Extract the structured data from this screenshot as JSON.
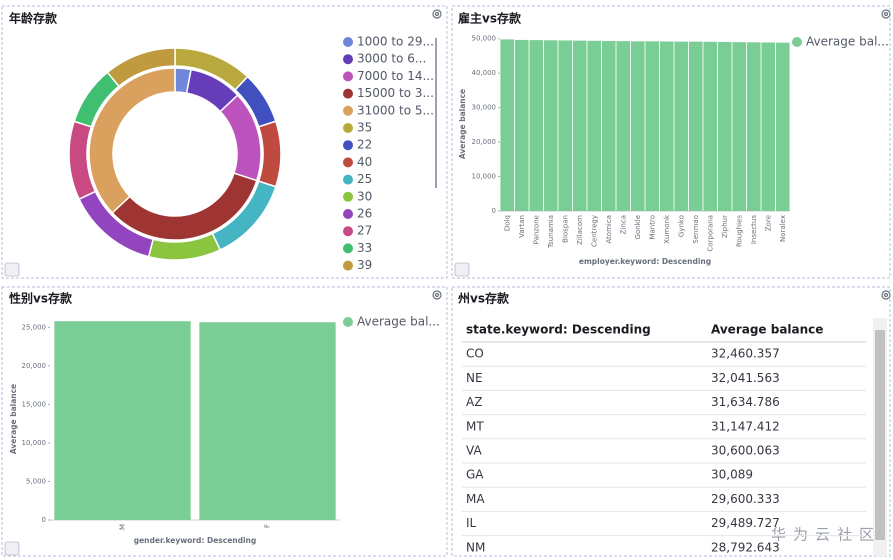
{
  "chart_data": [
    {
      "type": "donut",
      "title": "年龄存款",
      "rings": [
        {
          "categories": [
            "1000 to 29...",
            "3000 to 6...",
            "7000 to 14...",
            "15000 to 3...",
            "31000 to 5..."
          ],
          "colors": [
            "#6f87d8",
            "#663db8",
            "#bc52bc",
            "#9e3533",
            "#daa05d"
          ],
          "values": [
            3,
            10,
            17,
            33,
            37
          ]
        },
        {
          "categories": [
            "35",
            "22",
            "40",
            "25",
            "30",
            "26",
            "27",
            "33",
            "39"
          ],
          "colors": [
            "#b9a83e",
            "#4050bf",
            "#bf4a3f",
            "#45b5c4",
            "#8bc43f",
            "#9345bf",
            "#c94a82",
            "#3fbf6f",
            "#bf9a3f"
          ],
          "values": [
            12,
            8,
            10,
            13,
            11,
            14,
            12,
            9,
            11
          ]
        }
      ]
    },
    {
      "type": "bar",
      "title": "雇主vs存款",
      "categories": [
        "Dolq",
        "Vartan",
        "Panzone",
        "Tsunamia",
        "Biospan",
        "Zillacom",
        "Centregy",
        "Atomica",
        "Zinca",
        "Gonkle",
        "Mantro",
        "Xumonk",
        "Gynko",
        "Senmao",
        "Corporana",
        "Ziphur",
        "Roughies",
        "Insectus",
        "Zore",
        "Noralex"
      ],
      "series": [
        {
          "name": "Average bal...",
          "color": "#7acd94",
          "values": [
            49800,
            49650,
            49600,
            49550,
            49500,
            49450,
            49400,
            49350,
            49300,
            49250,
            49250,
            49200,
            49150,
            49150,
            49100,
            49050,
            49000,
            48950,
            48900,
            48850
          ]
        }
      ],
      "ylim": [
        0,
        50500
      ],
      "yticks": [
        0,
        {
          "value": 10000,
          "label": "10,000"
        },
        {
          "value": 20000,
          "label": "20,000"
        },
        {
          "value": 30000,
          "label": "30,000"
        },
        {
          "value": 40000,
          "label": "40,000"
        },
        {
          "value": 50000,
          "label": "50,000"
        }
      ],
      "x_label": "employer.keyword: Descending",
      "y_label": "Average balance"
    },
    {
      "type": "bar",
      "title": "性别vs存款",
      "categories": [
        "M",
        "F"
      ],
      "series": [
        {
          "name": "Average bal...",
          "color": "#7acd94",
          "values": [
            25780,
            25650
          ]
        }
      ],
      "ylim": [
        0,
        26200
      ],
      "yticks": [
        0,
        {
          "value": 5000,
          "label": "5,000"
        },
        {
          "value": 10000,
          "label": "10,000"
        },
        {
          "value": 15000,
          "label": "15,000"
        },
        {
          "value": 20000,
          "label": "20,000"
        },
        {
          "value": 25000,
          "label": "25,000"
        }
      ],
      "x_label": "gender.keyword: Descending",
      "y_label": "Average balance"
    }
  ],
  "table": {
    "title": "州vs存款",
    "columns": [
      "state.keyword: Descending",
      "Average balance"
    ],
    "rows": [
      [
        "CO",
        "32,460.357"
      ],
      [
        "NE",
        "32,041.563"
      ],
      [
        "AZ",
        "31,634.786"
      ],
      [
        "MT",
        "31,147.412"
      ],
      [
        "VA",
        "30,600.063"
      ],
      [
        "GA",
        "30,089"
      ],
      [
        "MA",
        "29,600.333"
      ],
      [
        "IL",
        "29,489.727"
      ],
      [
        "NM",
        "28,792.643"
      ]
    ]
  },
  "watermark": "华为云社区"
}
